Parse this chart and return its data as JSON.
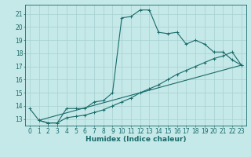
{
  "xlabel": "Humidex (Indice chaleur)",
  "xlim": [
    -0.5,
    23.5
  ],
  "ylim": [
    12.5,
    21.7
  ],
  "xticks": [
    0,
    1,
    2,
    3,
    4,
    5,
    6,
    7,
    8,
    9,
    10,
    11,
    12,
    13,
    14,
    15,
    16,
    17,
    18,
    19,
    20,
    21,
    22,
    23
  ],
  "yticks": [
    13,
    14,
    15,
    16,
    17,
    18,
    19,
    20,
    21
  ],
  "bg_color": "#c5e8e8",
  "line_color": "#1a6b6b",
  "grid_color": "#a8d0d0",
  "line1_x": [
    0,
    1,
    2,
    3,
    4,
    5,
    6,
    7,
    8,
    9,
    10,
    11,
    12,
    13,
    14,
    15,
    16,
    17,
    18,
    19,
    20,
    21,
    22,
    23
  ],
  "line1_y": [
    13.8,
    12.9,
    12.7,
    12.7,
    13.8,
    13.8,
    13.8,
    14.3,
    14.4,
    15.0,
    20.7,
    20.8,
    21.3,
    21.3,
    19.6,
    19.5,
    19.6,
    18.7,
    19.0,
    18.7,
    18.1,
    18.1,
    17.5,
    17.1
  ],
  "line2_x": [
    1,
    2,
    3,
    4,
    5,
    6,
    7,
    8,
    9,
    10,
    11,
    12,
    13,
    14,
    15,
    16,
    17,
    18,
    19,
    20,
    21,
    22,
    23
  ],
  "line2_y": [
    12.9,
    12.7,
    12.7,
    13.1,
    13.2,
    13.3,
    13.5,
    13.7,
    14.0,
    14.3,
    14.6,
    15.0,
    15.3,
    15.6,
    16.0,
    16.4,
    16.7,
    17.0,
    17.3,
    17.6,
    17.8,
    18.1,
    17.1
  ],
  "line3_x": [
    1,
    23
  ],
  "line3_y": [
    12.9,
    17.1
  ]
}
